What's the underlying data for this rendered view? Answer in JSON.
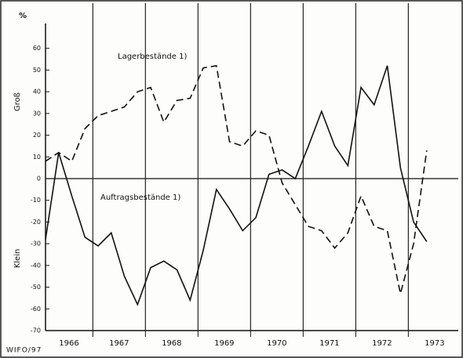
{
  "chart_data": {
    "type": "line",
    "y_unit": "%",
    "y_upper_label": "Groß",
    "y_lower_label": "Klein",
    "source": "WIFO/97",
    "x": [
      1966.1,
      1966.35,
      1966.6,
      1966.85,
      1967.1,
      1967.35,
      1967.6,
      1967.85,
      1968.1,
      1968.35,
      1968.6,
      1968.85,
      1969.1,
      1969.35,
      1969.6,
      1969.85,
      1970.1,
      1970.35,
      1970.6,
      1970.85,
      1971.1,
      1971.35,
      1971.6,
      1971.85,
      1972.1,
      1972.35,
      1972.6,
      1972.85,
      1973.1,
      1973.35
    ],
    "series": [
      {
        "name": "Lagerbestände 1)",
        "color": "#111111",
        "dash": true,
        "values": [
          8,
          12,
          8,
          23,
          29,
          31,
          33,
          40,
          42,
          26,
          36,
          37,
          51,
          52,
          17,
          15,
          22,
          20,
          -2,
          -12,
          -22,
          -24,
          -32,
          -25,
          -8,
          -22,
          -24,
          -53,
          -30,
          13
        ]
      },
      {
        "name": "Auftragsbestände 1)",
        "color": "#111111",
        "dash": false,
        "values": [
          -28,
          12,
          -8,
          -27,
          -31,
          -25,
          -45,
          -58,
          -41,
          -38,
          -42,
          -56,
          -33,
          -5,
          -14,
          -24,
          -18,
          2,
          4,
          0,
          15,
          31,
          15,
          6,
          42,
          34,
          52,
          5,
          -20,
          -29
        ]
      }
    ],
    "xlim": [
      1966.1,
      1973.95
    ],
    "xticks": [
      1967,
      1968,
      1969,
      1970,
      1971,
      1972,
      1973
    ],
    "year_labels": [
      "1966",
      "1967",
      "1968",
      "1969",
      "1970",
      "1971",
      "1972",
      "1973"
    ],
    "ylim": [
      -70,
      70
    ],
    "yticks": [
      -70,
      -60,
      -50,
      -40,
      -30,
      -20,
      -10,
      0,
      10,
      20,
      30,
      40,
      50,
      60
    ],
    "grid": true
  }
}
